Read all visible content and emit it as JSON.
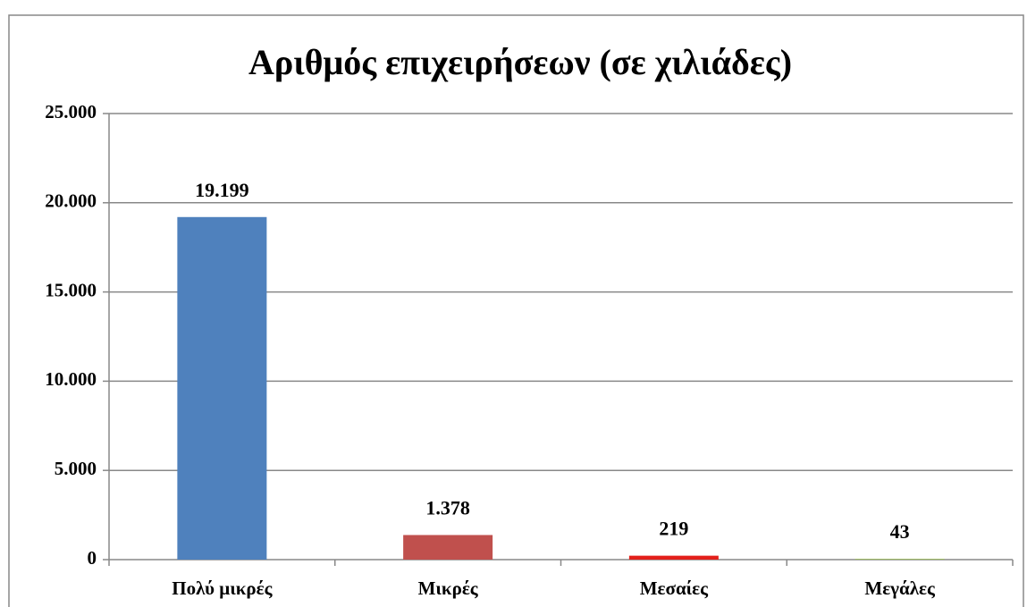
{
  "chart_data": {
    "type": "bar",
    "title": "Αριθμός επιχειρήσεων (σε χιλιάδες)",
    "categories": [
      "Πολύ μικρές",
      "Μικρές",
      "Μεσαίες",
      "Μεγάλες"
    ],
    "values": [
      19199,
      1378,
      219,
      43
    ],
    "value_labels": [
      "19.199",
      "1.378",
      "219",
      "43"
    ],
    "colors": [
      "#4f81bd",
      "#c0504d",
      "#e3201b",
      "#9bbb59"
    ],
    "ylim": [
      0,
      25000
    ],
    "yticks": [
      {
        "value": 0,
        "label": "0"
      },
      {
        "value": 5000,
        "label": "5.000"
      },
      {
        "value": 10000,
        "label": "10.000"
      },
      {
        "value": 15000,
        "label": "15.000"
      },
      {
        "value": 20000,
        "label": "20.000"
      },
      {
        "value": 25000,
        "label": "25.000"
      }
    ],
    "grid": true
  }
}
